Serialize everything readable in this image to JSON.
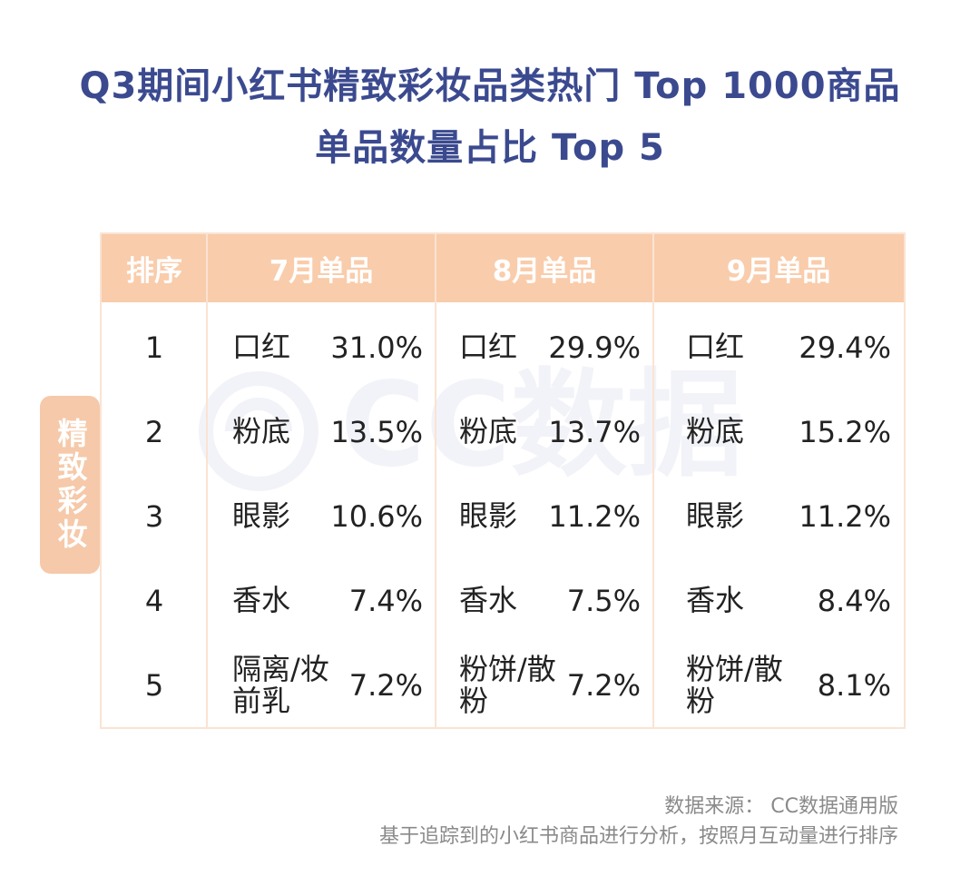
{
  "title": {
    "line1": "Q3期间小红书精致彩妆品类热门 Top 1000商品",
    "line2": "单品数量占比 Top 5"
  },
  "watermark": {
    "text": "CC数据"
  },
  "side_label": "精致彩妆",
  "colors": {
    "title": "#3b4a8f",
    "header_bg": "#f9ccab",
    "side_label_bg": "#f5c9a9",
    "grid_line": "#fbe3d3",
    "source_text": "#8a8a8a"
  },
  "chart_data": {
    "type": "table",
    "columns": [
      "排序",
      "7月单品",
      "8月单品",
      "9月单品"
    ],
    "rows": [
      {
        "rank": "1",
        "jul": {
          "item": "口红",
          "pct": "31.0%"
        },
        "aug": {
          "item": "口红",
          "pct": "29.9%"
        },
        "sep": {
          "item": "口红",
          "pct": "29.4%"
        }
      },
      {
        "rank": "2",
        "jul": {
          "item": "粉底",
          "pct": "13.5%"
        },
        "aug": {
          "item": "粉底",
          "pct": "13.7%"
        },
        "sep": {
          "item": "粉底",
          "pct": "15.2%"
        }
      },
      {
        "rank": "3",
        "jul": {
          "item": "眼影",
          "pct": "10.6%"
        },
        "aug": {
          "item": "眼影",
          "pct": "11.2%"
        },
        "sep": {
          "item": "眼影",
          "pct": "11.2%"
        }
      },
      {
        "rank": "4",
        "jul": {
          "item": "香水",
          "pct": "7.4%"
        },
        "aug": {
          "item": "香水",
          "pct": "7.5%"
        },
        "sep": {
          "item": "香水",
          "pct": "8.4%"
        }
      },
      {
        "rank": "5",
        "jul": {
          "item": "隔离/妆前乳",
          "pct": "7.2%"
        },
        "aug": {
          "item": "粉饼/散粉",
          "pct": "7.2%"
        },
        "sep": {
          "item": "粉饼/散粉",
          "pct": "8.1%"
        }
      }
    ]
  },
  "source": {
    "line1": "数据来源： CC数据通用版",
    "line2": "基于追踪到的小红书商品进行分析，按照月互动量进行排序"
  }
}
